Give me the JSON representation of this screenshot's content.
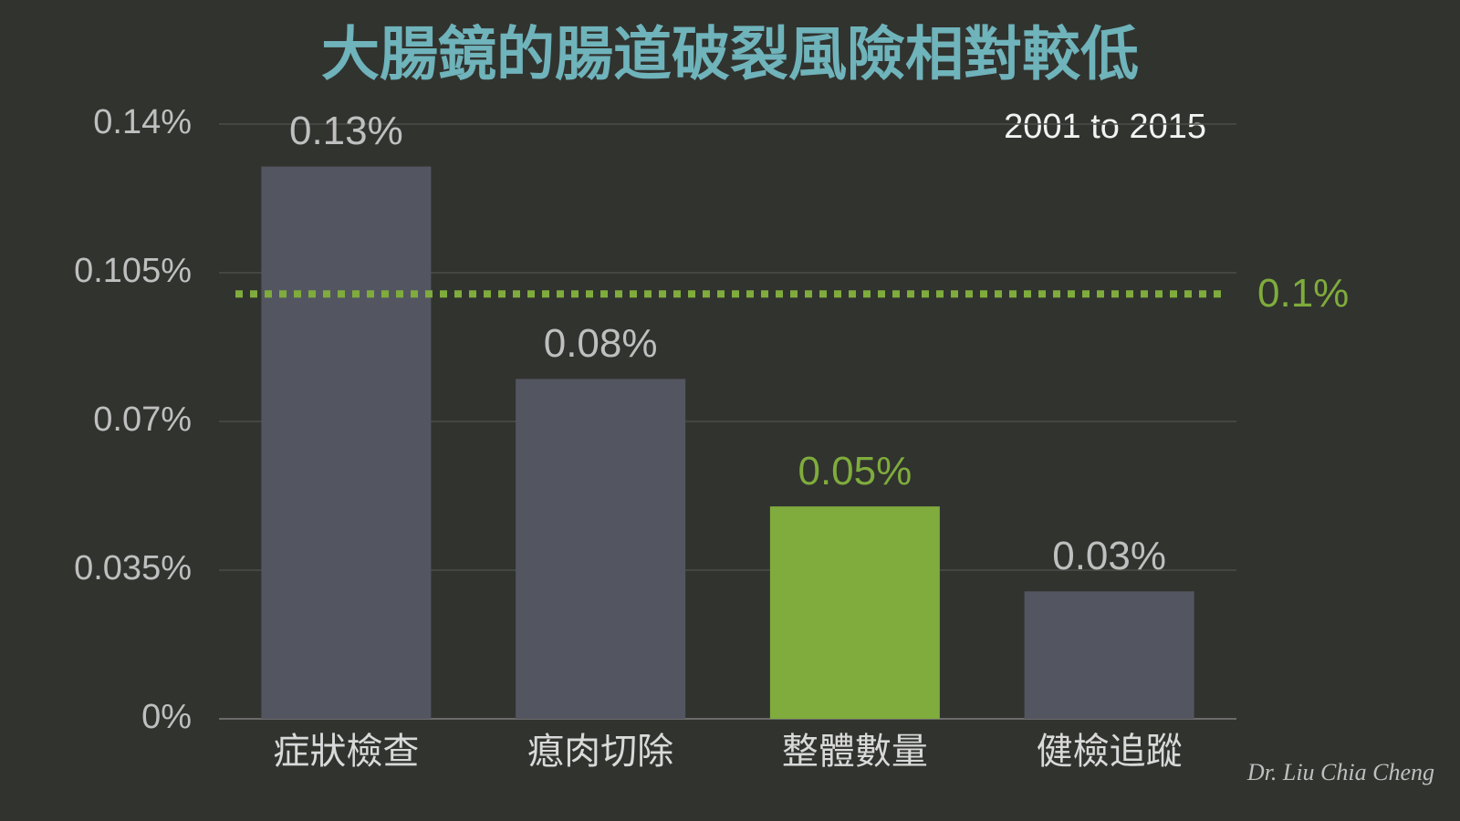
{
  "chart_data": {
    "type": "bar",
    "title": "大腸鏡的腸道破裂風險相對較低",
    "subtitle": "2001 to 2015",
    "categories": [
      "症狀檢查",
      "瘜肉切除",
      "整體數量",
      "健檢追蹤"
    ],
    "values": [
      0.13,
      0.08,
      0.05,
      0.03
    ],
    "value_labels": [
      "0.13%",
      "0.08%",
      "0.05%",
      "0.03%"
    ],
    "color": "#535660",
    "colors": [
      "#535660",
      "#535660",
      "#7fac3c",
      "#535660"
    ],
    "ylim": [
      0,
      0.14
    ],
    "yticks": [
      {
        "value": 0,
        "label": "0%"
      },
      {
        "value": 0.035,
        "label": "0.035%"
      },
      {
        "value": 0.07,
        "label": "0.07%"
      },
      {
        "value": 0.105,
        "label": "0.105%"
      },
      {
        "value": 0.14,
        "label": "0.14%"
      }
    ],
    "grid": true,
    "reference_line": {
      "value": 0.1,
      "label": "0.1%",
      "color": "#7fac3c"
    },
    "watermark": "Dr. Liu Chia Cheng"
  }
}
